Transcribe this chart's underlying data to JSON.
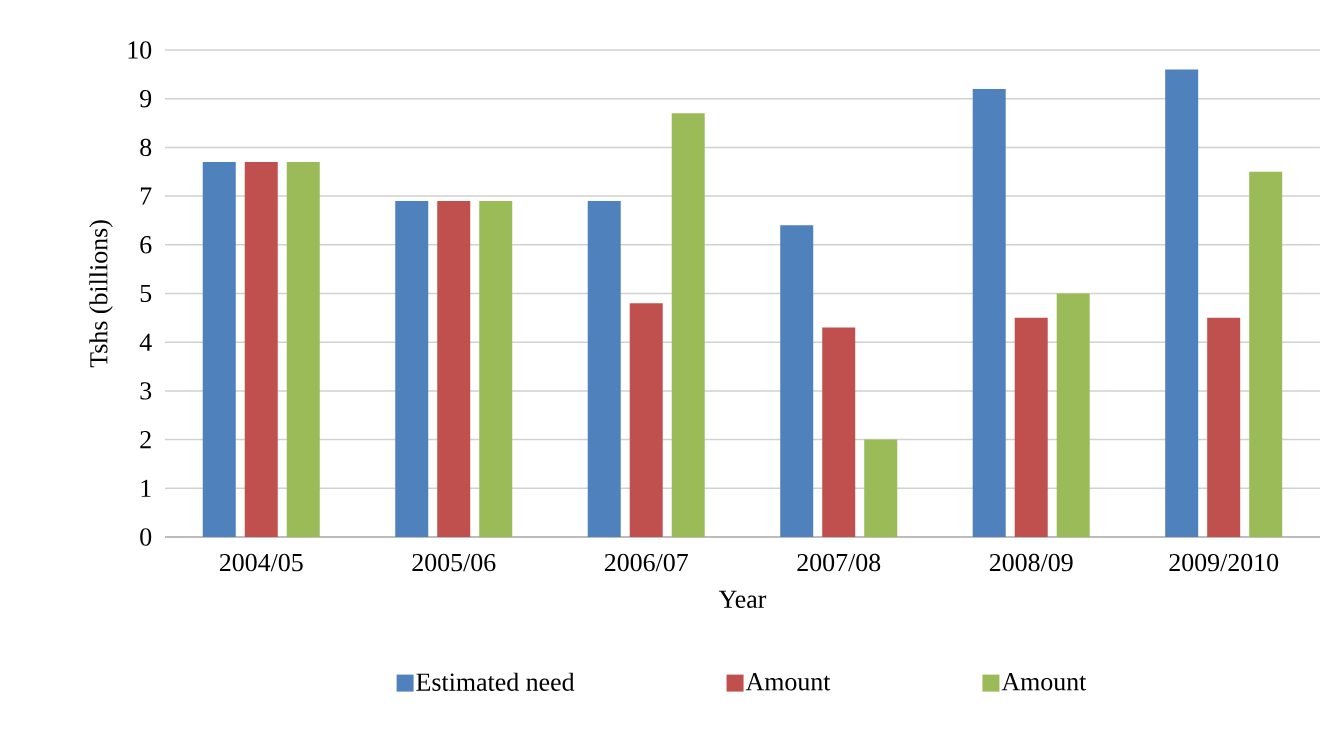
{
  "chart_data": {
    "type": "bar",
    "xlabel": "Year",
    "ylabel": "Tshs (billions)",
    "categories": [
      "2004/05",
      "2005/06",
      "2006/07",
      "2007/08",
      "2008/09",
      "2009/2010"
    ],
    "series": [
      {
        "name": "Estimated need",
        "color": "#4f81bd",
        "values": [
          7.7,
          6.9,
          6.9,
          6.4,
          9.2,
          9.6
        ]
      },
      {
        "name": "Amount",
        "color": "#c0504d",
        "values": [
          7.7,
          6.9,
          4.8,
          4.3,
          4.5,
          4.5
        ]
      },
      {
        "name": "Amount",
        "color": "#9bbb59",
        "values": [
          7.7,
          6.9,
          8.7,
          2.0,
          5.0,
          7.5
        ]
      }
    ],
    "ylim": [
      0,
      10
    ],
    "yticks": [
      0,
      1,
      2,
      3,
      4,
      5,
      6,
      7,
      8,
      9,
      10
    ],
    "grid": "y",
    "legend": "bottom"
  }
}
